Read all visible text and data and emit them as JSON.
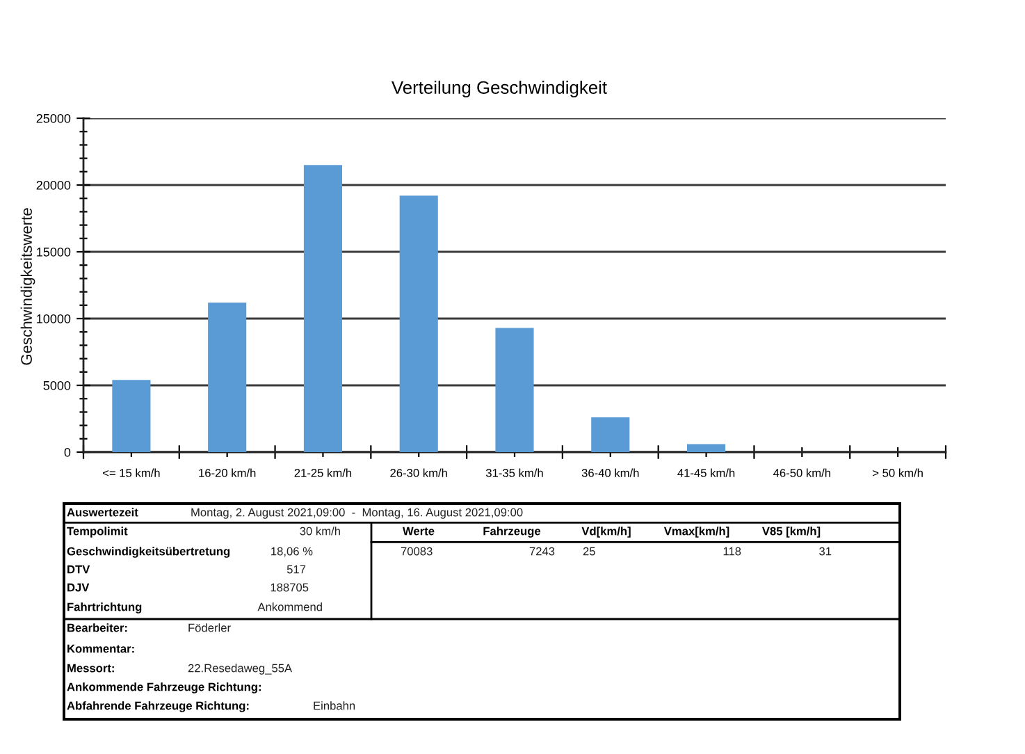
{
  "chart_data": {
    "type": "bar",
    "title": "Verteilung Geschwindigkeit",
    "ylabel": "Geschwindigkeitswerte",
    "categories": [
      "<= 15 km/h",
      "16-20 km/h",
      "21-25 km/h",
      "26-30 km/h",
      "31-35 km/h",
      "36-40 km/h",
      "41-45 km/h",
      "46-50 km/h",
      "> 50 km/h"
    ],
    "values": [
      5400,
      11200,
      21500,
      19200,
      9300,
      2600,
      600,
      0,
      0
    ],
    "color": "#5b9bd5",
    "ylim": [
      0,
      25000
    ],
    "yticks": [
      0,
      {
        "value": 1000,
        "label": null
      },
      {
        "value": 2000,
        "label": null
      },
      {
        "value": 3000,
        "label": null
      },
      {
        "value": 4000,
        "label": null
      },
      5000,
      {
        "value": 6000,
        "label": null
      },
      {
        "value": 7000,
        "label": null
      },
      {
        "value": 8000,
        "label": null
      },
      {
        "value": 9000,
        "label": null
      },
      10000,
      {
        "value": 11000,
        "label": null
      },
      {
        "value": 12000,
        "label": null
      },
      {
        "value": 13000,
        "label": null
      },
      {
        "value": 14000,
        "label": null
      },
      15000,
      {
        "value": 16000,
        "label": null
      },
      {
        "value": 17000,
        "label": null
      },
      {
        "value": 18000,
        "label": null
      },
      {
        "value": 19000,
        "label": null
      },
      20000,
      {
        "value": 21000,
        "label": null
      },
      {
        "value": 22000,
        "label": null
      },
      {
        "value": 23000,
        "label": null
      },
      {
        "value": 24000,
        "label": null
      },
      25000
    ],
    "grid": "y",
    "annotations": [
      "Auswertezeit",
      "Montag, 2. August 2021,09:00  -  Montag, 16. August 2021,09:00",
      "Tempolimit",
      "30 km/h",
      "Geschwindigkeitsübertretung",
      "18,06 %",
      "DTV",
      "517",
      "DJV",
      "188705",
      "Fahrtrichtung",
      "Ankommend",
      "Werte",
      "Fahrzeuge",
      "Vd[km/h]",
      "Vmax[km/h]",
      "V85 [km/h]",
      "70083",
      "7243",
      "25",
      "118",
      "31",
      "Bearbeiter:",
      "Föderler",
      "Kommentar:",
      "Messort:",
      "22.Resedaweg_55A",
      "Ankommende Fahrzeuge Richtung:",
      "Abfahrende Fahrzeuge Richtung:",
      "Einbahn"
    ]
  }
}
